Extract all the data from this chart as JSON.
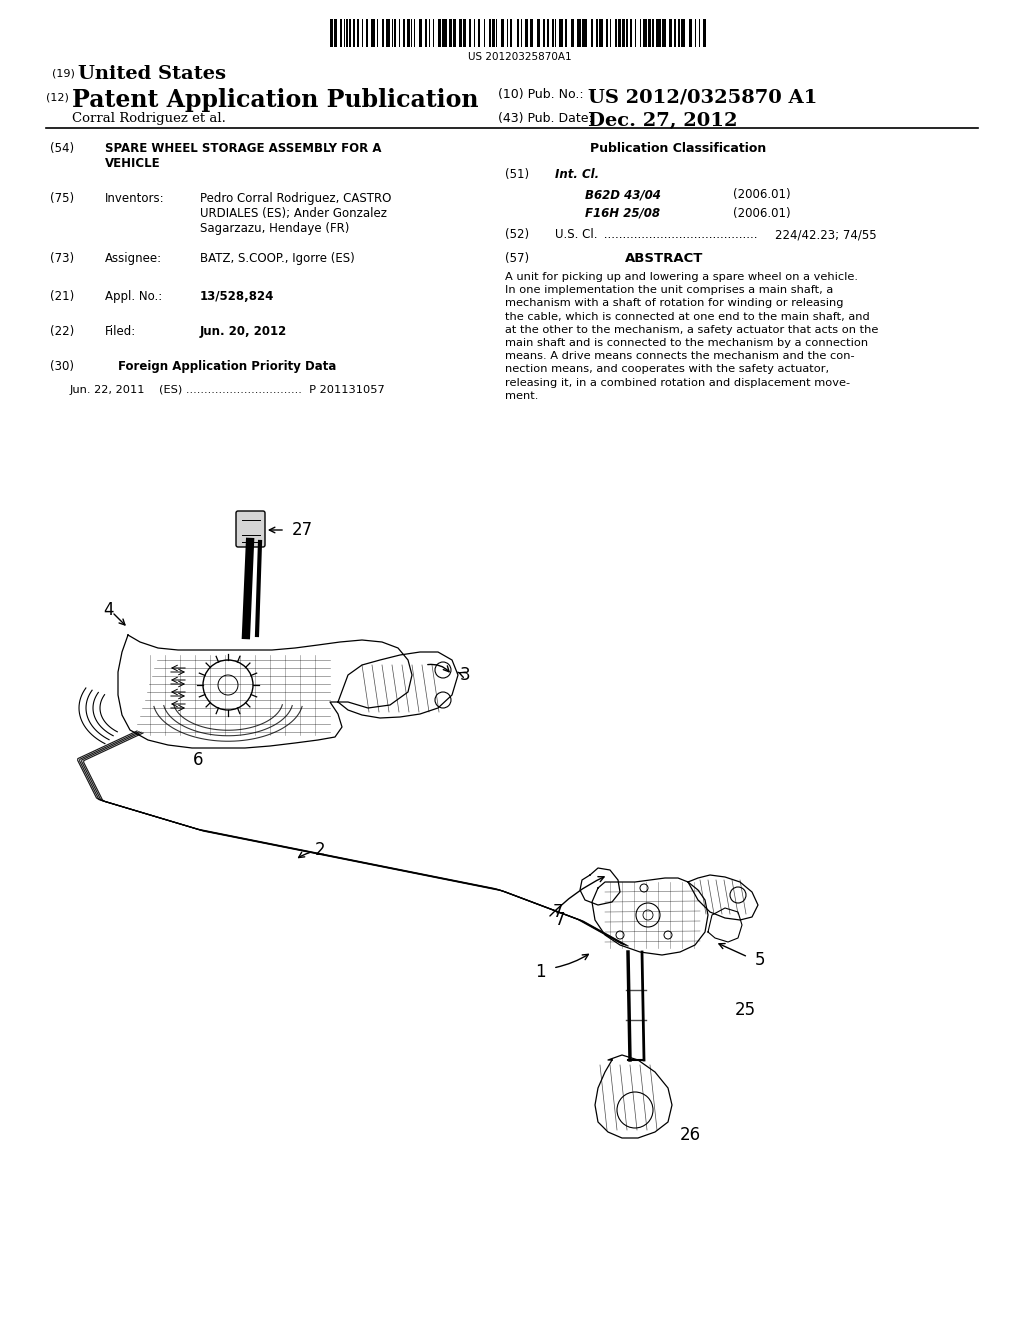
{
  "background_color": "#ffffff",
  "barcode_text": "US 20120325870A1",
  "title_19_sup": "(19)",
  "title_19_text": "United States",
  "title_12_sup": "(12)",
  "title_12_text": "Patent Application Publication",
  "author_line": "Corral Rodriguez et al.",
  "pub_no_label": "(10) Pub. No.:",
  "pub_no_value": "US 2012/0325870 A1",
  "pub_date_label": "(43) Pub. Date:",
  "pub_date_value": "Dec. 27, 2012",
  "field54_label": "(54)",
  "field54_text": "SPARE WHEEL STORAGE ASSEMBLY FOR A\nVEHICLE",
  "field75_label": "(75)",
  "field75_title": "Inventors:",
  "field75_text": "Pedro Corral Rodriguez, CASTRO\nURDIALES (ES); Ander Gonzalez\nSagarzazu, Hendaye (FR)",
  "field73_label": "(73)",
  "field73_title": "Assignee:",
  "field73_text": "BATZ, S.COOP., Igorre (ES)",
  "field21_label": "(21)",
  "field21_title": "Appl. No.:",
  "field21_text": "13/528,824",
  "field22_label": "(22)",
  "field22_title": "Filed:",
  "field22_text": "Jun. 20, 2012",
  "field30_label": "(30)",
  "field30_text": "Foreign Application Priority Data",
  "field30_sub": "Jun. 22, 2011    (ES) ................................  P 201131057",
  "pub_class_title": "Publication Classification",
  "field51_label": "(51)",
  "field51_title": "Int. Cl.",
  "field51_b62d": "B62D 43/04",
  "field51_b62d_year": "(2006.01)",
  "field51_f16h": "F16H 25/08",
  "field51_f16h_year": "(2006.01)",
  "field52_label": "(52)",
  "field52_title": "U.S. Cl.",
  "field52_dots": " .........................................",
  "field52_text": "224/42.23; 74/55",
  "field57_label": "(57)",
  "field57_title": "ABSTRACT",
  "abstract_text": "A unit for picking up and lowering a spare wheel on a vehicle.\nIn one implementation the unit comprises a main shaft, a\nmechanism with a shaft of rotation for winding or releasing\nthe cable, which is connected at one end to the main shaft, and\nat the other to the mechanism, a safety actuator that acts on the\nmain shaft and is connected to the mechanism by a connection\nmeans. A drive means connects the mechanism and the con-\nnection means, and cooperates with the safety actuator,\nreleasing it, in a combined rotation and displacement move-\nment."
}
